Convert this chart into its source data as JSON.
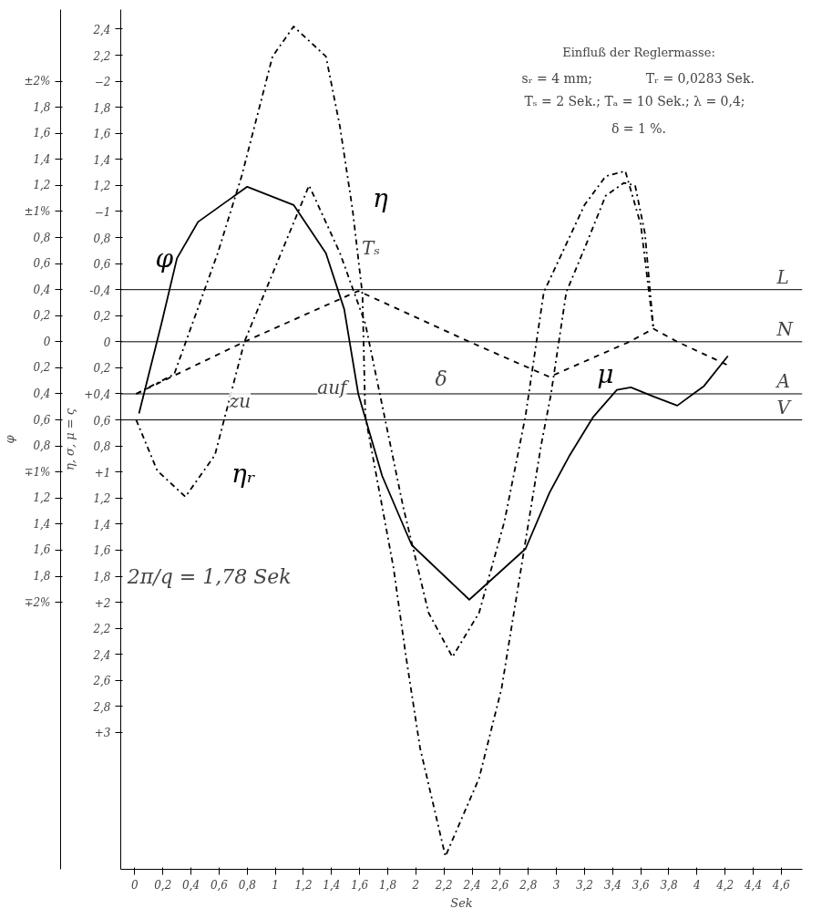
{
  "chart_data": {
    "type": "line",
    "xlabel": "Sek",
    "ylabel": "η, σ, μ = ς",
    "y2label": "φ",
    "xlim": [
      -0.1,
      4.75
    ],
    "ylim": [
      4.05,
      -2.55
    ],
    "y2lim": [
      4.05,
      -2.55
    ],
    "xticks": [
      0,
      {
        "value": 0.2,
        "label": "0,2"
      },
      {
        "value": 0.4,
        "label": "0,4"
      },
      {
        "value": 0.6,
        "label": "0,6"
      },
      {
        "value": 0.8,
        "label": "0,8"
      },
      1,
      {
        "value": 1.2,
        "label": "1,2"
      },
      {
        "value": 1.4,
        "label": "1,4"
      },
      {
        "value": 1.6,
        "label": "1,6"
      },
      {
        "value": 1.8,
        "label": "1,8"
      },
      2,
      {
        "value": 2.2,
        "label": "2,2"
      },
      {
        "value": 2.4,
        "label": "2,4"
      },
      {
        "value": 2.6,
        "label": "2,6"
      },
      {
        "value": 2.8,
        "label": "2,8"
      },
      3,
      {
        "value": 3.2,
        "label": "3,2"
      },
      {
        "value": 3.4,
        "label": "3,4"
      },
      {
        "value": 3.6,
        "label": "3,6"
      },
      {
        "value": 3.8,
        "label": "3,8"
      },
      4,
      {
        "value": 4.2,
        "label": "4,2"
      },
      {
        "value": 4.4,
        "label": "4,4"
      },
      {
        "value": 4.6,
        "label": "4,6"
      }
    ],
    "yticks": [
      {
        "value": -2.4,
        "label": "2,4"
      },
      {
        "value": -2.2,
        "label": "2,2"
      },
      -2,
      {
        "value": -1.8,
        "label": "1,8"
      },
      {
        "value": -1.6,
        "label": "1,6"
      },
      {
        "value": -1.4,
        "label": "1,4"
      },
      {
        "value": -1.2,
        "label": "1,2"
      },
      -1,
      {
        "value": -0.8,
        "label": "0,8"
      },
      {
        "value": -0.6,
        "label": "0,6"
      },
      {
        "value": -0.4,
        "label": "-0,4"
      },
      {
        "value": -0.2,
        "label": "0,2"
      },
      0,
      {
        "value": 0.2,
        "label": "0,2"
      },
      {
        "value": 0.4,
        "label": "+0,4"
      },
      {
        "value": 0.6,
        "label": "0,6"
      },
      {
        "value": 0.8,
        "label": "0,8"
      },
      {
        "value": 1,
        "label": "+1"
      },
      {
        "value": 1.2,
        "label": "1,2"
      },
      {
        "value": 1.4,
        "label": "1,4"
      },
      {
        "value": 1.6,
        "label": "1,6"
      },
      {
        "value": 1.8,
        "label": "1,8"
      },
      {
        "value": 2,
        "label": "+2"
      },
      {
        "value": 2.2,
        "label": "2,2"
      },
      {
        "value": 2.4,
        "label": "2,4"
      },
      {
        "value": 2.6,
        "label": "2,6"
      },
      {
        "value": 2.8,
        "label": "2,8"
      },
      {
        "value": 3,
        "label": "+3"
      }
    ],
    "y2ticks": [
      {
        "value": -2,
        "label": "±2%"
      },
      {
        "value": -1.8,
        "label": "1,8"
      },
      {
        "value": -1.6,
        "label": "1,6"
      },
      {
        "value": -1.4,
        "label": "1,4"
      },
      {
        "value": -1.2,
        "label": "1,2"
      },
      {
        "value": -1,
        "label": "±1%"
      },
      {
        "value": -0.8,
        "label": "0,8"
      },
      {
        "value": -0.6,
        "label": "0,6"
      },
      {
        "value": -0.4,
        "label": "0,4"
      },
      {
        "value": -0.2,
        "label": "0,2"
      },
      0,
      {
        "value": 0.2,
        "label": "0,2"
      },
      {
        "value": 0.4,
        "label": "0,4"
      },
      {
        "value": 0.6,
        "label": "0,6"
      },
      {
        "value": 0.8,
        "label": "0,8"
      },
      {
        "value": 1,
        "label": "∓1%"
      },
      {
        "value": 1.2,
        "label": "1,2"
      },
      {
        "value": 1.4,
        "label": "1,4"
      },
      {
        "value": 1.6,
        "label": "1,6"
      },
      {
        "value": 1.8,
        "label": "1,8"
      },
      {
        "value": 2,
        "label": "∓2%"
      }
    ],
    "grid": false,
    "legend": false,
    "marker": "none",
    "series": [
      {
        "name": "φ",
        "color": "#000000",
        "line_style": "solid",
        "x": [
          0.03,
          0.19,
          0.3,
          0.45,
          0.8,
          1.13,
          1.36,
          1.49,
          1.59,
          1.76,
          1.97,
          2.38,
          2.78,
          2.95,
          3.09,
          3.26,
          3.43,
          3.53,
          3.69,
          3.86,
          4.05,
          4.22
        ],
        "values": [
          0.55,
          -0.14,
          -0.64,
          -0.92,
          -1.19,
          -1.05,
          -0.68,
          -0.25,
          0.4,
          1.03,
          1.56,
          1.98,
          1.59,
          1.16,
          0.88,
          0.58,
          0.37,
          0.35,
          0.42,
          0.49,
          0.34,
          0.11
        ]
      },
      {
        "name": "η",
        "color": "#000000",
        "line_style": "dashdot",
        "x": [
          0.01,
          0.28,
          0.41,
          0.59,
          0.76,
          0.98,
          1.13,
          1.36,
          1.46,
          1.55,
          1.62,
          1.64,
          1.84,
          1.93,
          2.03,
          2.21,
          2.45,
          2.61,
          2.75,
          2.89,
          2.96,
          3.07,
          3.22,
          3.35,
          3.48,
          3.56,
          3.63,
          3.69
        ],
        "values": [
          0.4,
          0.25,
          -0.14,
          -0.68,
          -1.27,
          -2.19,
          -2.42,
          -2.19,
          -1.65,
          -1.01,
          -0.36,
          0.57,
          1.73,
          2.42,
          3.12,
          3.95,
          3.35,
          2.66,
          1.73,
          0.8,
          0.41,
          -0.38,
          -0.77,
          -1.12,
          -1.22,
          -1.2,
          -0.83,
          -0.1
        ]
      },
      {
        "name": "ηᵣ",
        "color": "#000000",
        "line_style": "dashdot",
        "x": [
          0.01,
          0.16,
          0.36,
          0.57,
          0.78,
          1.24,
          1.46,
          1.64,
          1.91,
          2.09,
          2.26,
          2.45,
          2.63,
          2.78,
          2.91,
          3.2,
          3.35,
          3.49,
          3.6,
          3.69
        ],
        "values": [
          0.6,
          0.99,
          1.19,
          0.87,
          0,
          -1.2,
          -0.68,
          -0.14,
          1.27,
          2.08,
          2.42,
          2.08,
          1.38,
          0.57,
          -0.38,
          -1.05,
          -1.27,
          -1.31,
          -0.9,
          -0.1
        ]
      },
      {
        "name": "μ",
        "color": "#000000",
        "line_style": "dashed",
        "x": [
          0.01,
          0.78,
          1.59,
          2.38,
          2.95,
          3.52,
          3.69,
          3.86,
          4.24
        ],
        "values": [
          0.4,
          0,
          -0.39,
          0,
          0.27,
          0,
          -0.1,
          0,
          0.19
        ]
      }
    ],
    "ref_lines": [
      {
        "axis": "y",
        "value": -0.4,
        "label": "L"
      },
      {
        "axis": "y",
        "value": 0,
        "label": "N"
      },
      {
        "axis": "y",
        "value": 0.4,
        "label": "A"
      },
      {
        "axis": "y",
        "value": 0.6,
        "label": "V"
      }
    ],
    "annotations": [
      "Einfluß der Reglermasse:",
      "sᵣ = 4 mm;",
      "Tᵣ = 0,0283 Sek.",
      "Tₛ = 2 Sek.;  Tₐ = 10 Sek.;  λ = 0,4;",
      "δ = 1 %.",
      "2π/q = 1,78 Sek",
      "zu",
      "auf",
      "Tₛ",
      "δ"
    ]
  }
}
